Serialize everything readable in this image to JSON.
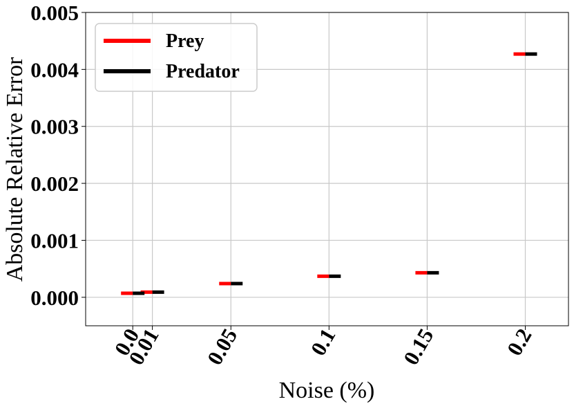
{
  "chart_data": {
    "type": "scatter",
    "title": "",
    "xlabel": "Noise (%)",
    "ylabel": "Absolute Relative Error",
    "x_categories": [
      "0.0",
      "0.01",
      "0.05",
      "0.1",
      "0.15",
      "0.2"
    ],
    "x_values": [
      0.0,
      0.01,
      0.05,
      0.1,
      0.15,
      0.2
    ],
    "xlim": [
      -0.024,
      0.222
    ],
    "ylim": [
      -0.0005,
      0.005
    ],
    "y_ticks": [
      "0.000",
      "0.001",
      "0.002",
      "0.003",
      "0.004",
      "0.005"
    ],
    "y_tick_values": [
      0.0,
      0.001,
      0.002,
      0.003,
      0.004,
      0.005
    ],
    "grid": true,
    "legend_position": "top-left",
    "series": [
      {
        "name": "Prey",
        "color": "#ff0000",
        "values": [
          7e-05,
          9e-05,
          0.00024,
          0.00037,
          0.00043,
          0.00427
        ]
      },
      {
        "name": "Predator",
        "color": "#000000",
        "values": [
          7e-05,
          9e-05,
          0.00024,
          0.00037,
          0.00043,
          0.00427
        ]
      }
    ]
  }
}
